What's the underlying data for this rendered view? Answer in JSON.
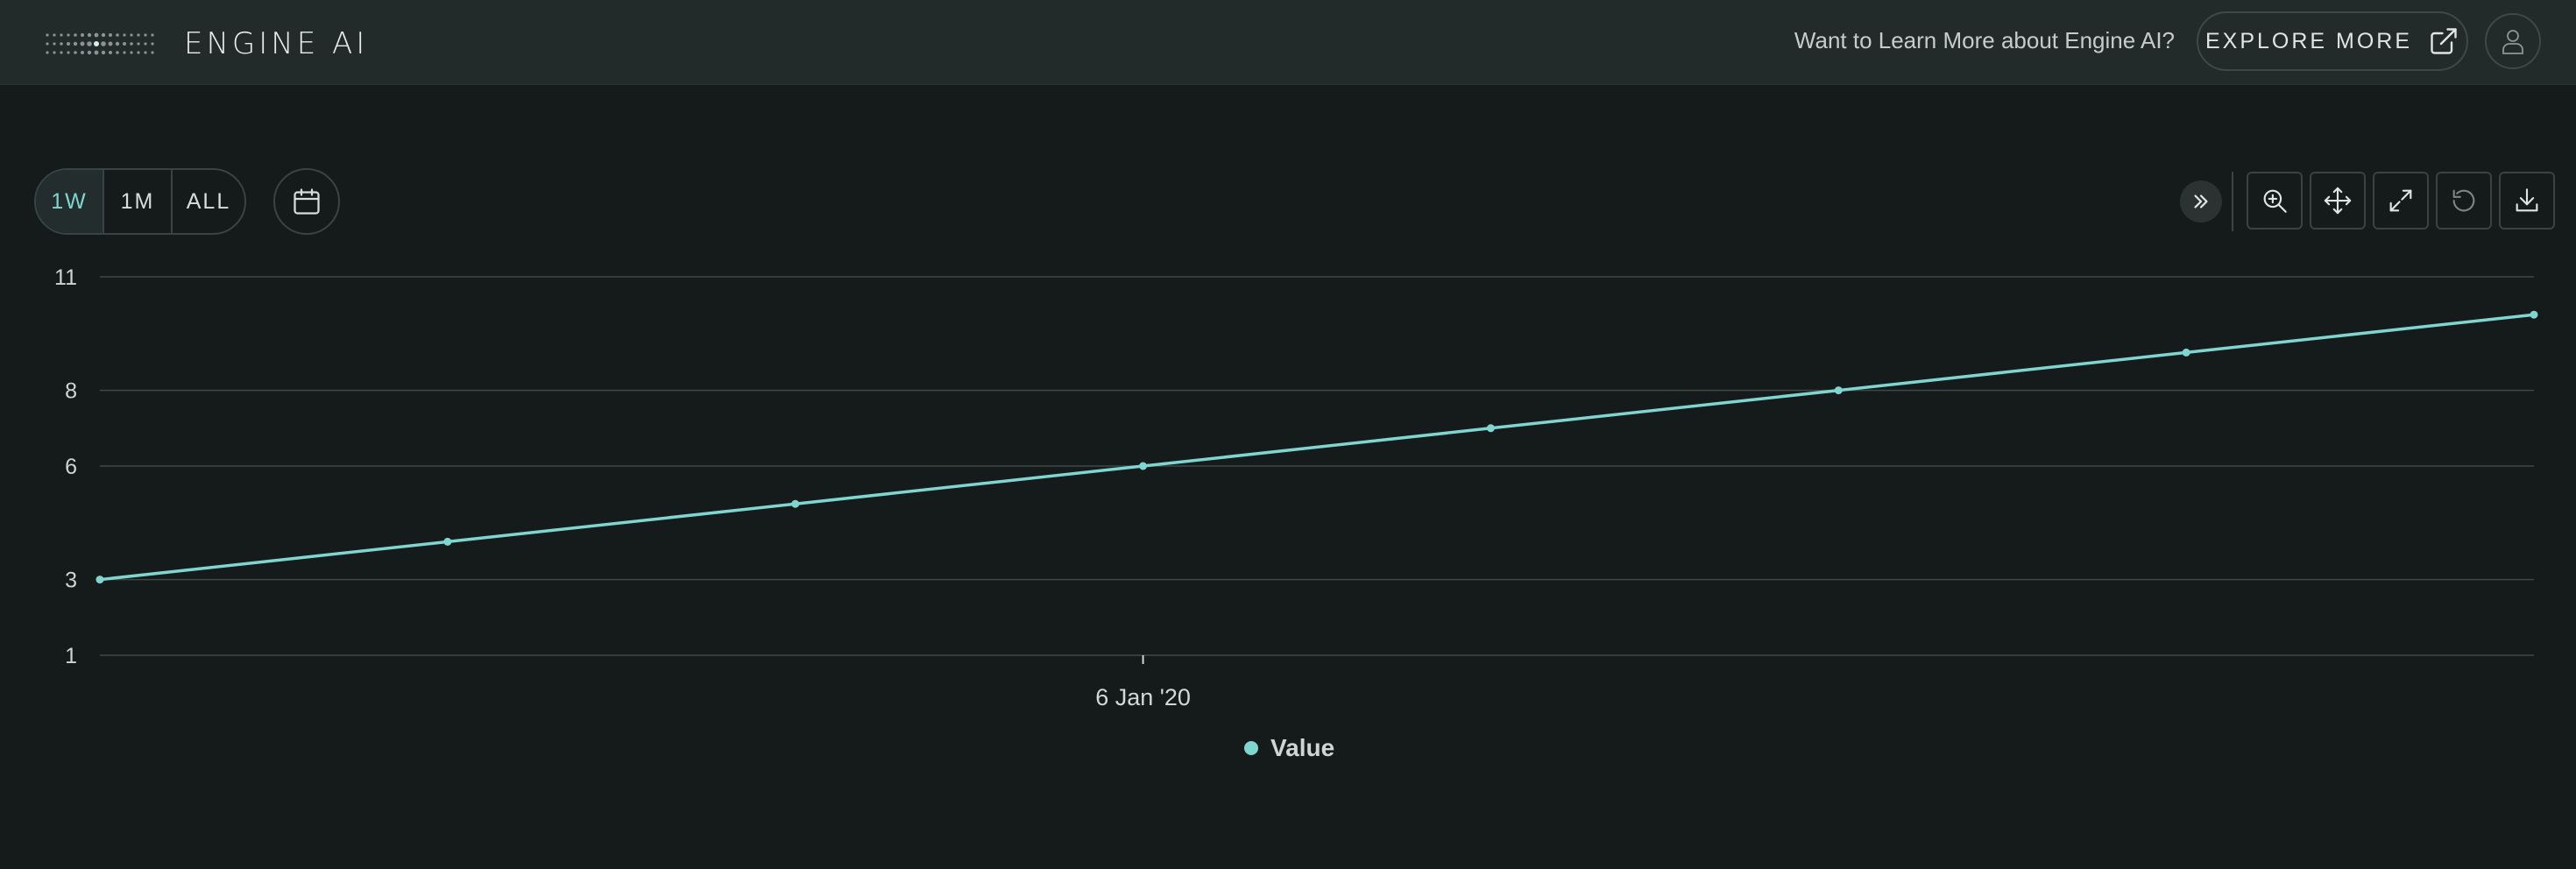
{
  "header": {
    "brand": "ENGINE AI",
    "learn_more": "Want to Learn More about Engine AI?",
    "explore_label": "EXPLORE MORE"
  },
  "controls": {
    "ranges": [
      "1W",
      "1M",
      "ALL"
    ],
    "active_range": "1W"
  },
  "colors": {
    "series": "#7fd6d0",
    "background": "#151a1a",
    "topbar": "#232a2a"
  },
  "chart_data": {
    "type": "line",
    "x": [
      "2020-01-03",
      "2020-01-04",
      "2020-01-05",
      "2020-01-06",
      "2020-01-07",
      "2020-01-08",
      "2020-01-09",
      "2020-01-10"
    ],
    "x_tick_labels": [
      {
        "x": "2020-01-06",
        "label": "6 Jan '20"
      }
    ],
    "series": [
      {
        "name": "Value",
        "values": [
          3,
          4,
          5,
          6,
          7,
          8,
          9,
          10
        ]
      }
    ],
    "y_ticks": [
      1,
      3,
      6,
      8,
      11
    ],
    "ylim": [
      1,
      11
    ],
    "grid": true,
    "legend": "bottom-center"
  }
}
